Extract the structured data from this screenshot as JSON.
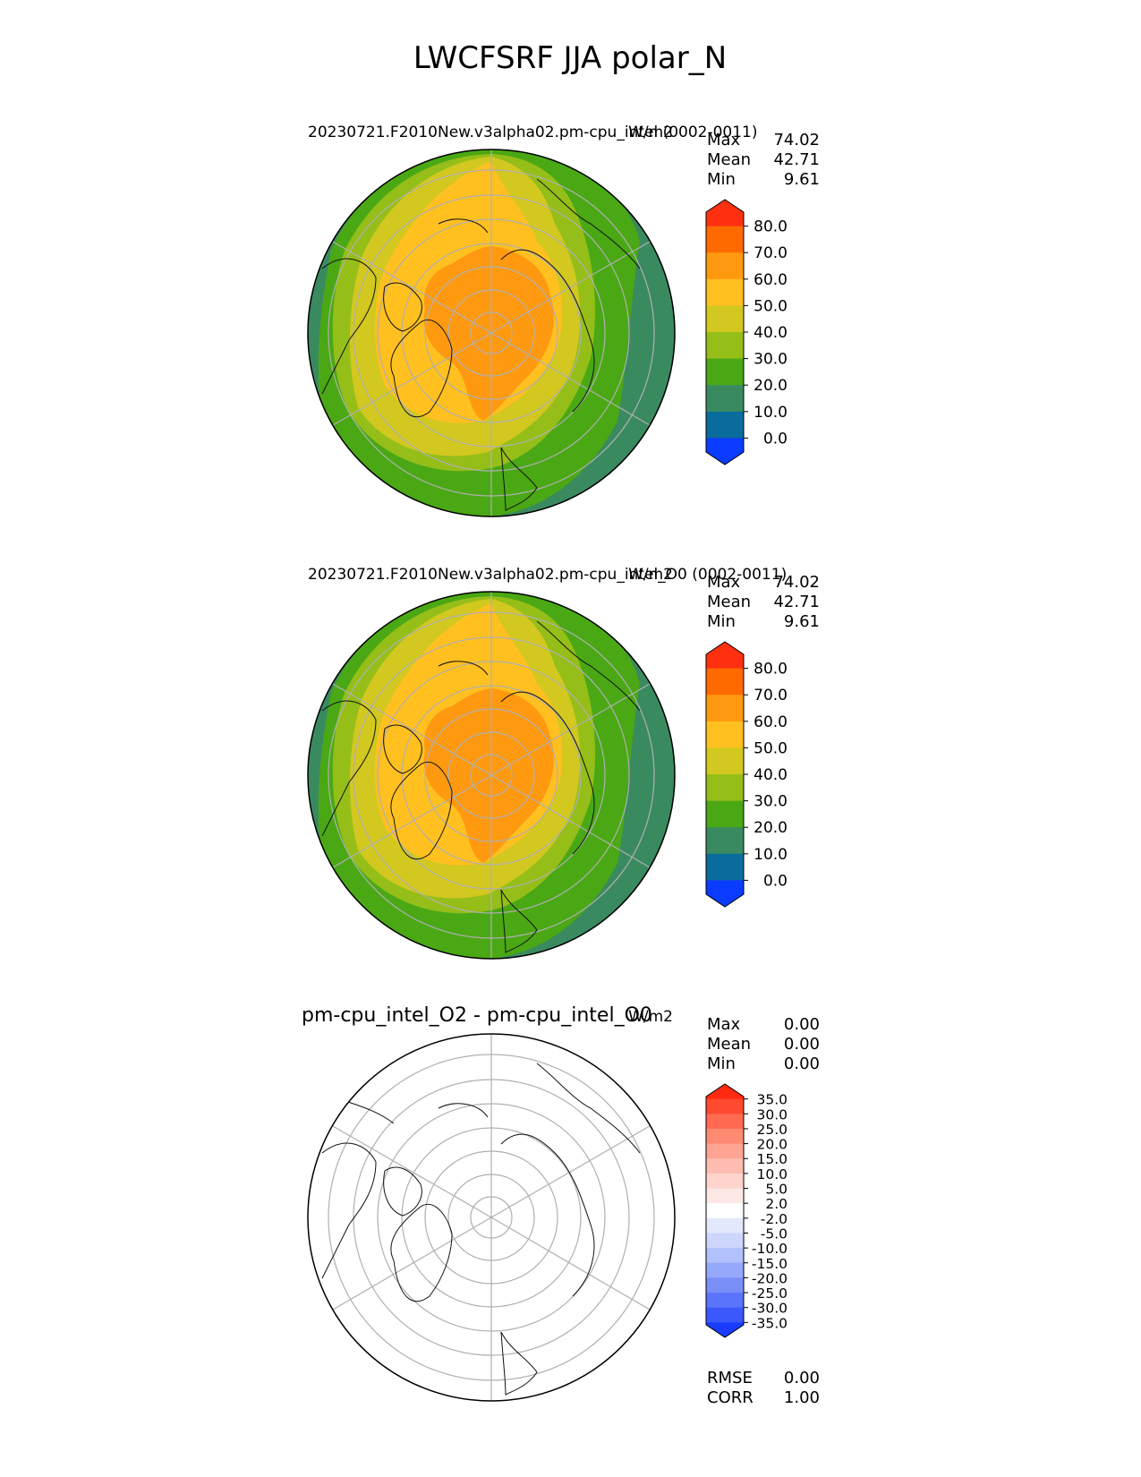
{
  "figure": {
    "title": "LWCFSRF JJA polar_N"
  },
  "panels": [
    {
      "title": "20230721.F2010New.v3alpha02.pm-cpu_intel (0002-0011)",
      "units": "W/m2",
      "stats": [
        {
          "label": "Max",
          "value": "74.02"
        },
        {
          "label": "Mean",
          "value": "42.71"
        },
        {
          "label": "Min",
          "value": "9.61"
        }
      ],
      "colorbar": {
        "ticks": [
          "80.0",
          "70.0",
          "60.0",
          "50.0",
          "40.0",
          "30.0",
          "20.0",
          "10.0",
          "0.0"
        ],
        "colors": [
          "#ff3010",
          "#ff6a00",
          "#ff9910",
          "#ffc020",
          "#d2c820",
          "#96be18",
          "#4aa814",
          "#3a8a60",
          "#0a6c9c",
          "#0a3cff"
        ]
      }
    },
    {
      "title": "20230721.F2010New.v3alpha02.pm-cpu_intel_O0 (0002-0011)",
      "units": "W/m2",
      "stats": [
        {
          "label": "Max",
          "value": "74.02"
        },
        {
          "label": "Mean",
          "value": "42.71"
        },
        {
          "label": "Min",
          "value": "9.61"
        }
      ],
      "colorbar": {
        "ticks": [
          "80.0",
          "70.0",
          "60.0",
          "50.0",
          "40.0",
          "30.0",
          "20.0",
          "10.0",
          "0.0"
        ],
        "colors": [
          "#ff3010",
          "#ff6a00",
          "#ff9910",
          "#ffc020",
          "#d2c820",
          "#96be18",
          "#4aa814",
          "#3a8a60",
          "#0a6c9c",
          "#0a3cff"
        ]
      }
    },
    {
      "title": "pm-cpu_intel_O2 - pm-cpu_intel_O0",
      "units": "W/m2",
      "stats": [
        {
          "label": "Max",
          "value": "0.00"
        },
        {
          "label": "Mean",
          "value": "0.00"
        },
        {
          "label": "Min",
          "value": "0.00"
        }
      ],
      "colorbar": {
        "ticks": [
          "35.0",
          "30.0",
          "25.0",
          "20.0",
          "15.0",
          "10.0",
          "5.0",
          "2.0",
          "-2.0",
          "-5.0",
          "-10.0",
          "-15.0",
          "-20.0",
          "-25.0",
          "-30.0",
          "-35.0"
        ],
        "colors": [
          "#ff2a10",
          "#ff4a30",
          "#ff6a50",
          "#ff8a72",
          "#ffa492",
          "#ffbcb0",
          "#ffd4cc",
          "#fde8e6",
          "#ffffff",
          "#e4e8fc",
          "#cdd6fc",
          "#b2c0fc",
          "#96a8fc",
          "#7a8ef8",
          "#5a74fc",
          "#3a58fc",
          "#1a3cff"
        ]
      },
      "metrics": [
        {
          "label": "RMSE",
          "value": "0.00"
        },
        {
          "label": "CORR",
          "value": "1.00"
        }
      ]
    }
  ],
  "map_colors": {
    "fill_levels": [
      "#3a8a60",
      "#4aa814",
      "#96be18",
      "#d2c820",
      "#ffc020",
      "#ff9910"
    ],
    "coastline": "#111111",
    "gridline": "#b0b0b0"
  }
}
